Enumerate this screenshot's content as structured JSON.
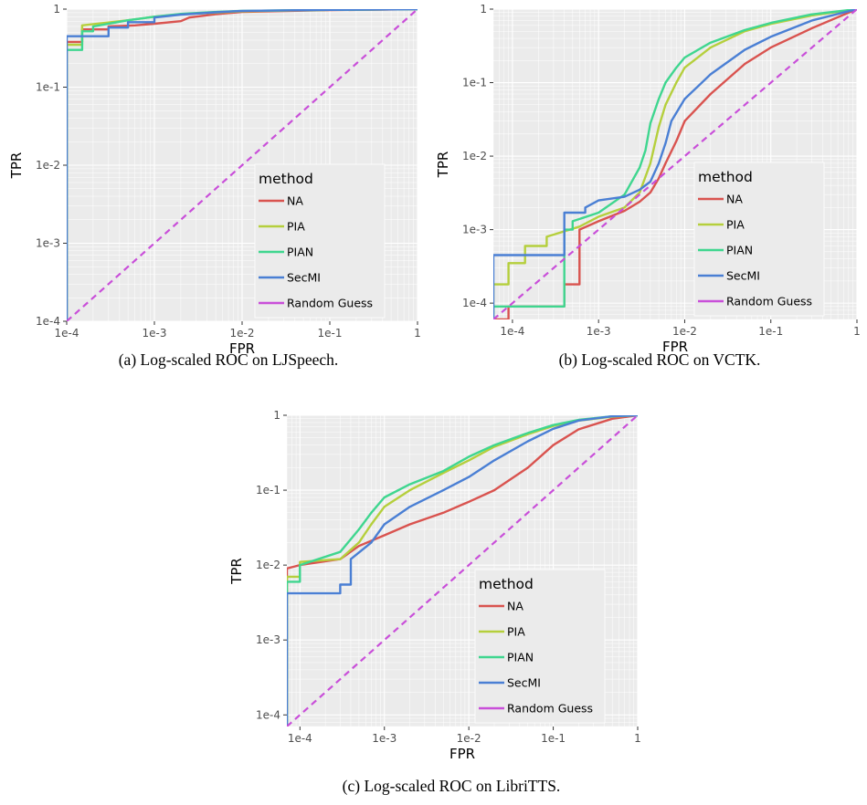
{
  "legend": {
    "title": "method",
    "entries": [
      "NA",
      "PIA",
      "PIAN",
      "SecMI",
      "Random Guess"
    ]
  },
  "colors": {
    "NA": "#d9534f",
    "PIA": "#b5cf3c",
    "PIAN": "#3fd68f",
    "SecMI": "#4a7fd4",
    "Random Guess": "#c94fd9",
    "panel_bg": "#ebebeb",
    "grid": "#ffffff"
  },
  "chart_data": [
    {
      "type": "line",
      "caption": "(a) Log-scaled ROC on LJSpeech.",
      "xlabel": "FPR",
      "ylabel": "TPR",
      "x_scale": "log10",
      "y_scale": "log10",
      "xlim": [
        0.0001,
        1
      ],
      "ylim": [
        0.0001,
        1
      ],
      "x_ticks": [
        "1e-4",
        "1e-3",
        "1e-2",
        "1e-1",
        "1"
      ],
      "y_ticks": [
        "1e-4",
        "1e-3",
        "1e-2",
        "1e-1",
        "1"
      ],
      "legend_position": "inside-lower-right",
      "grid": true,
      "series": [
        {
          "name": "NA",
          "x": [
            0.0001,
            0.0001,
            0.00015,
            0.00015,
            0.0003,
            0.0003,
            0.0006,
            0.001,
            0.002,
            0.0025,
            0.005,
            0.01,
            0.1,
            1
          ],
          "y": [
            0.0001,
            0.38,
            0.38,
            0.55,
            0.55,
            0.6,
            0.62,
            0.65,
            0.7,
            0.78,
            0.86,
            0.92,
            0.97,
            1
          ]
        },
        {
          "name": "PIA",
          "x": [
            0.0001,
            0.0001,
            0.00015,
            0.00015,
            0.0005,
            0.001,
            0.002,
            0.005,
            0.01,
            0.1,
            1
          ],
          "y": [
            0.0001,
            0.35,
            0.35,
            0.62,
            0.72,
            0.8,
            0.86,
            0.9,
            0.94,
            0.98,
            1
          ]
        },
        {
          "name": "PIAN",
          "x": [
            0.0001,
            0.0001,
            0.00015,
            0.00015,
            0.0002,
            0.0002,
            0.0005,
            0.001,
            0.002,
            0.005,
            0.01,
            0.1,
            1
          ],
          "y": [
            0.0001,
            0.3,
            0.3,
            0.52,
            0.52,
            0.6,
            0.72,
            0.8,
            0.87,
            0.92,
            0.95,
            0.98,
            1
          ]
        },
        {
          "name": "SecMI",
          "x": [
            0.0001,
            0.0001,
            0.0003,
            0.0003,
            0.0005,
            0.0005,
            0.001,
            0.001,
            0.002,
            0.005,
            0.01,
            0.1,
            1
          ],
          "y": [
            0.0001,
            0.45,
            0.45,
            0.58,
            0.58,
            0.68,
            0.68,
            0.78,
            0.85,
            0.91,
            0.95,
            0.98,
            1
          ]
        },
        {
          "name": "Random Guess",
          "x": [
            0.0001,
            1
          ],
          "y": [
            0.0001,
            1
          ]
        }
      ]
    },
    {
      "type": "line",
      "caption": "(b) Log-scaled ROC on VCTK.",
      "xlabel": "FPR",
      "ylabel": "TPR",
      "x_scale": "log10",
      "y_scale": "log10",
      "xlim": [
        6e-05,
        1
      ],
      "ylim": [
        6e-05,
        1
      ],
      "x_ticks": [
        "1e-4",
        "1e-3",
        "1e-2",
        "1e-1",
        "1"
      ],
      "y_ticks": [
        "1e-4",
        "1e-3",
        "1e-2",
        "1e-1",
        "1"
      ],
      "legend_position": "inside-lower-right",
      "grid": true,
      "series": [
        {
          "name": "NA",
          "x": [
            6e-05,
            9e-05,
            9e-05,
            0.0004,
            0.0004,
            0.0006,
            0.0006,
            0.001,
            0.002,
            0.003,
            0.004,
            0.005,
            0.006,
            0.008,
            0.01,
            0.02,
            0.05,
            0.1,
            0.3,
            1
          ],
          "y": [
            6e-05,
            6e-05,
            9e-05,
            9e-05,
            0.00018,
            0.00018,
            0.001,
            0.0013,
            0.0018,
            0.0024,
            0.0032,
            0.005,
            0.008,
            0.016,
            0.03,
            0.07,
            0.18,
            0.3,
            0.55,
            1
          ]
        },
        {
          "name": "PIA",
          "x": [
            6e-05,
            6e-05,
            9e-05,
            9e-05,
            0.00014,
            0.00014,
            0.00025,
            0.00025,
            0.0006,
            0.001,
            0.002,
            0.003,
            0.004,
            0.005,
            0.006,
            0.008,
            0.01,
            0.02,
            0.05,
            0.1,
            0.3,
            1
          ],
          "y": [
            6e-05,
            0.00018,
            0.00018,
            0.00035,
            0.00035,
            0.0006,
            0.0006,
            0.0008,
            0.0011,
            0.0015,
            0.002,
            0.0032,
            0.008,
            0.025,
            0.05,
            0.1,
            0.16,
            0.3,
            0.5,
            0.63,
            0.82,
            1
          ]
        },
        {
          "name": "PIAN",
          "x": [
            6e-05,
            6e-05,
            0.0004,
            0.0004,
            0.0005,
            0.0005,
            0.001,
            0.002,
            0.003,
            0.0035,
            0.004,
            0.005,
            0.006,
            0.008,
            0.01,
            0.02,
            0.05,
            0.1,
            0.3,
            1
          ],
          "y": [
            6e-05,
            9e-05,
            9e-05,
            0.001,
            0.001,
            0.0013,
            0.0017,
            0.003,
            0.007,
            0.012,
            0.028,
            0.06,
            0.1,
            0.16,
            0.22,
            0.35,
            0.52,
            0.65,
            0.85,
            1
          ]
        },
        {
          "name": "SecMI",
          "x": [
            6e-05,
            6e-05,
            0.0004,
            0.0004,
            0.0007,
            0.0007,
            0.001,
            0.002,
            0.003,
            0.004,
            0.005,
            0.006,
            0.007,
            0.01,
            0.02,
            0.05,
            0.1,
            0.3,
            1
          ],
          "y": [
            6e-05,
            0.00045,
            0.00045,
            0.0017,
            0.0017,
            0.002,
            0.0025,
            0.0028,
            0.0035,
            0.0045,
            0.008,
            0.015,
            0.03,
            0.06,
            0.13,
            0.28,
            0.42,
            0.7,
            1
          ]
        },
        {
          "name": "Random Guess",
          "x": [
            6e-05,
            1
          ],
          "y": [
            6e-05,
            1
          ]
        }
      ]
    },
    {
      "type": "line",
      "caption": "(c) Log-scaled ROC on LibriTTS.",
      "xlabel": "FPR",
      "ylabel": "TPR",
      "x_scale": "log10",
      "y_scale": "log10",
      "xlim": [
        7e-05,
        1
      ],
      "ylim": [
        7e-05,
        1
      ],
      "x_ticks": [
        "1e-4",
        "1e-3",
        "1e-2",
        "1e-1",
        "1"
      ],
      "y_ticks": [
        "1e-4",
        "1e-3",
        "1e-2",
        "1e-1",
        "1"
      ],
      "legend_position": "inside-lower-right",
      "grid": true,
      "series": [
        {
          "name": "NA",
          "x": [
            7e-05,
            7e-05,
            0.0001,
            0.0003,
            0.0005,
            0.001,
            0.002,
            0.005,
            0.01,
            0.02,
            0.05,
            0.1,
            0.2,
            0.5,
            1
          ],
          "y": [
            7e-05,
            0.009,
            0.01,
            0.012,
            0.018,
            0.025,
            0.035,
            0.05,
            0.07,
            0.1,
            0.2,
            0.4,
            0.65,
            0.9,
            1
          ]
        },
        {
          "name": "PIA",
          "x": [
            7e-05,
            7e-05,
            0.0001,
            0.0001,
            0.0003,
            0.0005,
            0.0007,
            0.001,
            0.002,
            0.005,
            0.01,
            0.02,
            0.05,
            0.1,
            0.2,
            0.5,
            1
          ],
          "y": [
            7e-05,
            0.007,
            0.007,
            0.011,
            0.012,
            0.02,
            0.035,
            0.06,
            0.1,
            0.17,
            0.25,
            0.38,
            0.56,
            0.72,
            0.85,
            0.96,
            1
          ]
        },
        {
          "name": "PIAN",
          "x": [
            7e-05,
            7e-05,
            0.0001,
            0.0001,
            0.0003,
            0.0005,
            0.0007,
            0.001,
            0.002,
            0.005,
            0.01,
            0.02,
            0.05,
            0.1,
            0.2,
            0.5,
            1
          ],
          "y": [
            7e-05,
            0.006,
            0.006,
            0.01,
            0.015,
            0.03,
            0.05,
            0.08,
            0.12,
            0.18,
            0.28,
            0.4,
            0.58,
            0.74,
            0.87,
            0.97,
            1
          ]
        },
        {
          "name": "SecMI",
          "x": [
            7e-05,
            7e-05,
            0.0003,
            0.0003,
            0.0004,
            0.0004,
            0.0007,
            0.001,
            0.002,
            0.005,
            0.01,
            0.02,
            0.05,
            0.1,
            0.2,
            0.5,
            1
          ],
          "y": [
            7e-05,
            0.0042,
            0.0042,
            0.0055,
            0.0055,
            0.012,
            0.02,
            0.035,
            0.06,
            0.1,
            0.15,
            0.25,
            0.45,
            0.66,
            0.85,
            0.97,
            1
          ]
        },
        {
          "name": "Random Guess",
          "x": [
            7e-05,
            1
          ],
          "y": [
            7e-05,
            1
          ]
        }
      ]
    }
  ]
}
